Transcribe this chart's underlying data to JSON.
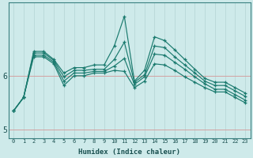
{
  "xlabel": "Humidex (Indice chaleur)",
  "bg_color": "#ceeaea",
  "grid_color_v": "#b8d8d8",
  "grid_color_h": "#d4a0a0",
  "line_color": "#1a7a6e",
  "x_values": [
    0,
    1,
    2,
    3,
    4,
    5,
    6,
    7,
    8,
    9,
    10,
    11,
    12,
    13,
    14,
    15,
    16,
    17,
    18,
    19,
    20,
    21,
    22,
    23
  ],
  "series": [
    [
      5.35,
      5.6,
      6.45,
      6.45,
      6.3,
      6.05,
      6.15,
      6.15,
      6.2,
      6.2,
      6.55,
      7.1,
      5.9,
      6.1,
      6.72,
      6.65,
      6.48,
      6.3,
      6.12,
      5.95,
      5.88,
      5.88,
      5.78,
      5.68
    ],
    [
      5.35,
      5.6,
      6.42,
      6.42,
      6.28,
      5.98,
      6.1,
      6.1,
      6.12,
      6.12,
      6.3,
      6.62,
      5.88,
      6.02,
      6.55,
      6.52,
      6.35,
      6.2,
      6.05,
      5.9,
      5.82,
      5.82,
      5.72,
      5.62
    ],
    [
      5.35,
      5.6,
      6.38,
      6.38,
      6.25,
      5.9,
      6.05,
      6.05,
      6.08,
      6.08,
      6.18,
      6.32,
      5.84,
      5.98,
      6.4,
      6.38,
      6.25,
      6.12,
      5.98,
      5.85,
      5.75,
      5.75,
      5.65,
      5.55
    ],
    [
      5.35,
      5.6,
      6.35,
      6.35,
      6.22,
      5.82,
      6.0,
      6.0,
      6.05,
      6.05,
      6.1,
      6.08,
      5.78,
      5.9,
      6.22,
      6.2,
      6.1,
      5.98,
      5.88,
      5.78,
      5.7,
      5.7,
      5.6,
      5.5
    ]
  ],
  "ylim": [
    4.85,
    7.35
  ],
  "yticks": [
    5,
    6
  ],
  "xlim": [
    -0.5,
    23.5
  ]
}
